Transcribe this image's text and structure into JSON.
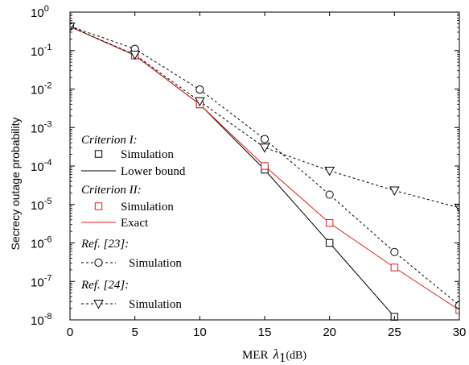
{
  "chart_data": {
    "type": "line",
    "xlabel": "MER",
    "xlabel_symbol": "λ",
    "xlabel_subscript": "1",
    "xlabel_unit": "(dB)",
    "ylabel": "Secrecy outage probability",
    "x_scale": "linear",
    "y_scale": "log",
    "xlim": [
      0,
      30
    ],
    "ylim": [
      1e-08,
      1
    ],
    "x_ticks": [
      "0",
      "5",
      "10",
      "15",
      "20",
      "25",
      "30"
    ],
    "y_tick_base": "10",
    "y_tick_exponents": [
      "0",
      "-1",
      "-2",
      "-3",
      "-4",
      "-5",
      "-6",
      "-7",
      "-8"
    ],
    "grid": false,
    "legend_position": "left-center",
    "series": [
      {
        "name": "Simulation",
        "group": "Criterion I:",
        "color": "#000000",
        "line": "none",
        "marker": "square",
        "x": [
          5,
          10,
          15,
          20,
          25
        ],
        "y": [
          0.075,
          0.004,
          8e-05,
          1e-06,
          1.2e-08
        ]
      },
      {
        "name": "Lower bound",
        "group": "Criterion I:",
        "color": "#000000",
        "line": "solid",
        "marker": "none",
        "x": [
          0,
          5,
          10,
          15,
          20,
          25
        ],
        "y": [
          0.42,
          0.075,
          0.004,
          8e-05,
          1e-06,
          1.2e-08
        ]
      },
      {
        "name": "Simulation",
        "group": "Criterion II:",
        "color": "#e0201a",
        "line": "none",
        "marker": "square",
        "x": [
          5,
          10,
          15,
          20,
          25,
          30
        ],
        "y": [
          0.075,
          0.004,
          0.0001,
          3.3e-06,
          2.3e-07,
          1.8e-08
        ]
      },
      {
        "name": "Exact",
        "group": "Criterion II:",
        "color": "#e0201a",
        "line": "solid",
        "marker": "none",
        "x": [
          0,
          5,
          10,
          15,
          20,
          25,
          30
        ],
        "y": [
          0.42,
          0.075,
          0.004,
          0.0001,
          3.3e-06,
          2.3e-07,
          1.8e-08
        ]
      },
      {
        "name": "Simulation",
        "group": "Ref. [23]:",
        "color": "#000000",
        "line": "dashed",
        "marker": "circle",
        "x": [
          0,
          5,
          10,
          15,
          20,
          25,
          30
        ],
        "y": [
          0.43,
          0.11,
          0.0097,
          0.0005,
          1.8e-05,
          5.8e-07,
          2.4e-08
        ]
      },
      {
        "name": "Simulation",
        "group": "Ref. [24]:",
        "color": "#000000",
        "line": "dashed",
        "marker": "triangle-down",
        "x": [
          0,
          5,
          10,
          15,
          20,
          25,
          30
        ],
        "y": [
          0.42,
          0.078,
          0.0048,
          0.0003,
          7.5e-05,
          2.3e-05,
          8.2e-06
        ]
      }
    ],
    "legend": [
      {
        "kind": "heading",
        "text": "Criterion I:"
      },
      {
        "kind": "entry",
        "series": 0,
        "text": "Simulation"
      },
      {
        "kind": "entry",
        "series": 1,
        "text": "Lower bound"
      },
      {
        "kind": "heading",
        "text": "Criterion II:"
      },
      {
        "kind": "entry",
        "series": 2,
        "text": "Simulation"
      },
      {
        "kind": "entry",
        "series": 3,
        "text": "Exact"
      },
      {
        "kind": "heading",
        "text": "Ref. [23]:"
      },
      {
        "kind": "entry",
        "series": 4,
        "text": "Simulation"
      },
      {
        "kind": "heading",
        "text": "Ref. [24]:"
      },
      {
        "kind": "entry",
        "series": 5,
        "text": "Simulation"
      }
    ]
  }
}
